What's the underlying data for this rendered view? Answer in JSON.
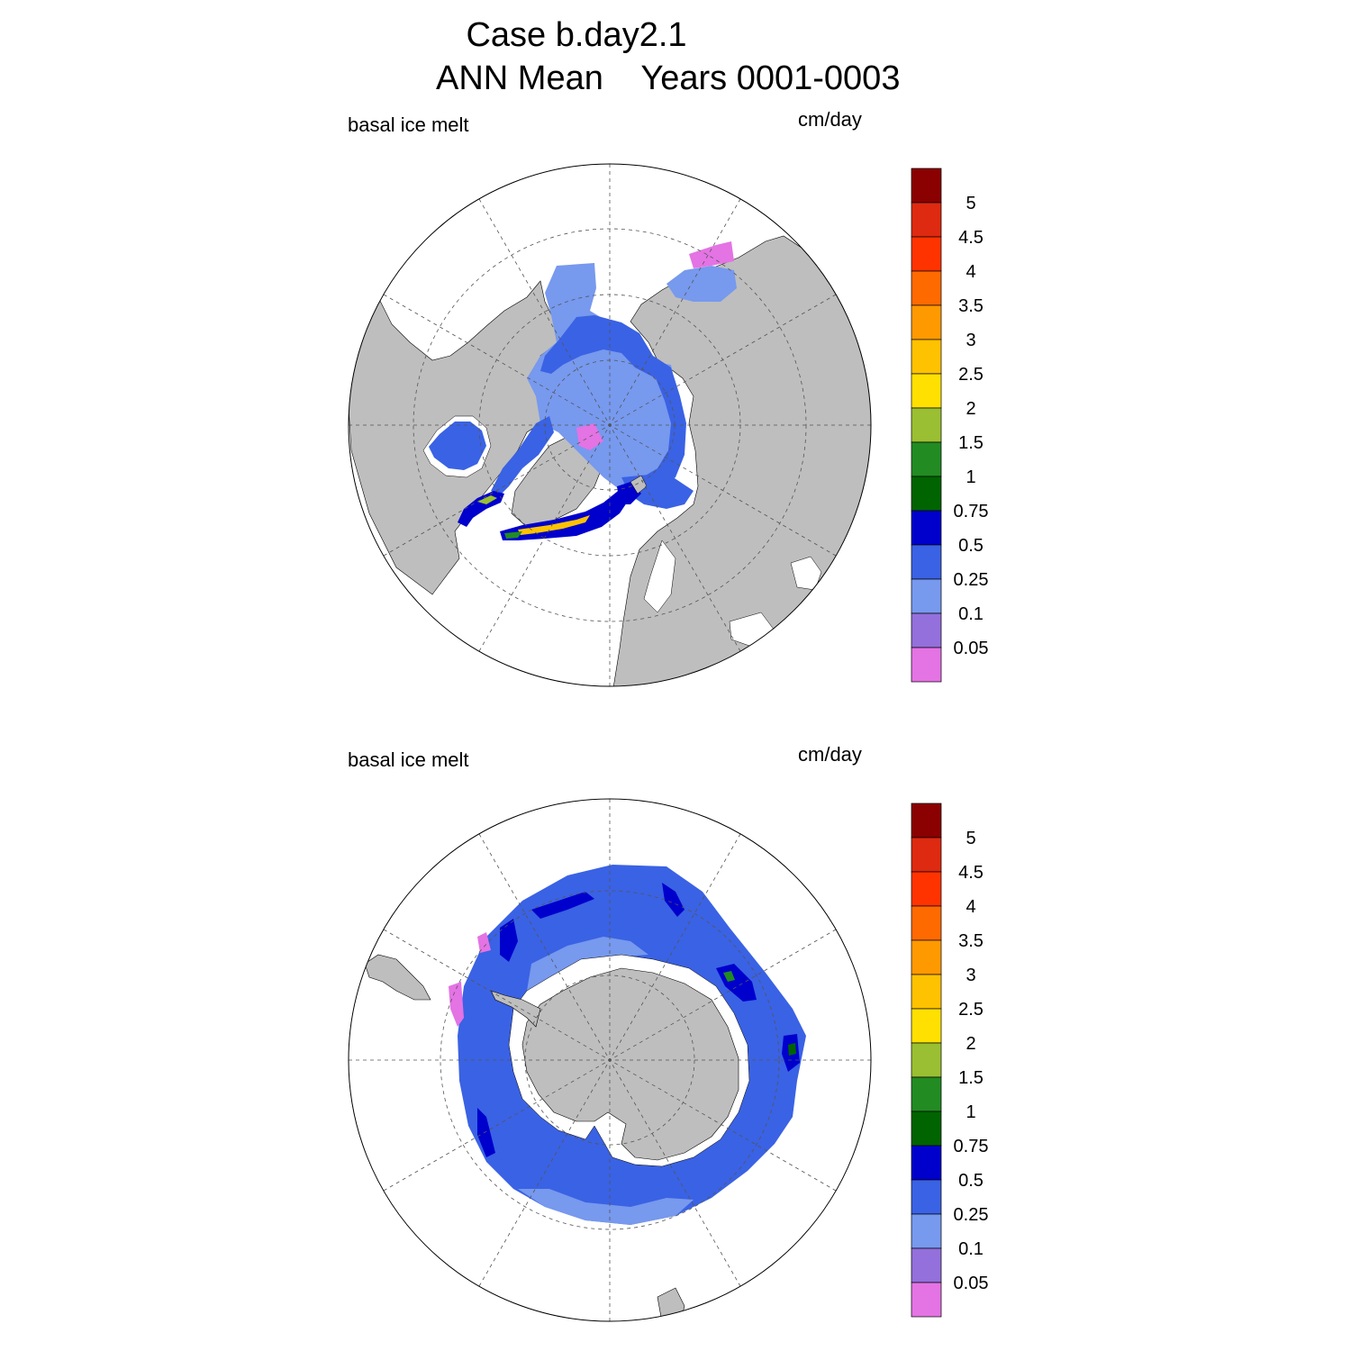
{
  "header": {
    "title_line1": "Case b.day2.1",
    "title_line2": "ANN Mean    Years 0001-0003"
  },
  "panels": [
    {
      "id": "north",
      "variable": "basal ice melt",
      "units": "cm/day"
    },
    {
      "id": "south",
      "variable": "basal ice melt",
      "units": "cm/day"
    }
  ],
  "colorbar": {
    "labels": [
      "5",
      "4.5",
      "4",
      "3.5",
      "3",
      "2.5",
      "2",
      "1.5",
      "1",
      "0.75",
      "0.5",
      "0.25",
      "0.1",
      "0.05"
    ],
    "colors": [
      "#8b0000",
      "#dd2a10",
      "#ff3300",
      "#ff6a00",
      "#ff9900",
      "#ffc200",
      "#ffe000",
      "#9abf32",
      "#228b22",
      "#006400",
      "#0000cd",
      "#3a62e4",
      "#7799ee",
      "#9370db",
      "#e473e4"
    ]
  },
  "colors": {
    "land": "#bebebe",
    "ocean": "#ffffff",
    "grid": "#555555"
  }
}
